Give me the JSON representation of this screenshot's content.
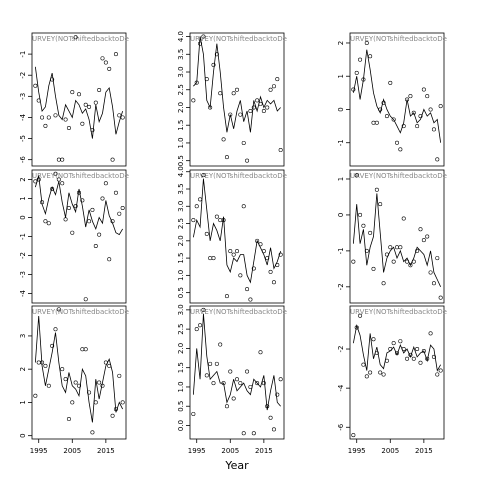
{
  "chart_data": [
    {
      "type": "scatter-line",
      "title": "URVEY(NOTshiftedbacktoDe",
      "x": [
        1994,
        1995,
        1996,
        1997,
        1998,
        1999,
        2000,
        2001,
        2002,
        2003,
        2004,
        2005,
        2006,
        2007,
        2008,
        2009,
        2010,
        2011,
        2012,
        2013,
        2014,
        2015,
        2016,
        2017,
        2018,
        2019,
        2020
      ],
      "xlim": [
        1993,
        2021
      ],
      "ylim": [
        -6.3,
        0
      ],
      "yticks": [
        -6,
        -5,
        -4,
        -3,
        -2,
        -1
      ],
      "values": [
        -2.5,
        -3.2,
        -4.0,
        -4.4,
        -4.0,
        -2.2,
        -3.9,
        -6.0,
        -6.0,
        -4.1,
        -4.5,
        -2.8,
        -0.2,
        -2.9,
        -4.3,
        -3.4,
        -3.5,
        -4.6,
        -3.3,
        -2.7,
        -1.2,
        -1.4,
        -1.7,
        -6.0,
        -1.0,
        -3.9,
        -4.0
      ],
      "fitted": [
        -1.6,
        -2.8,
        -3.7,
        -3.5,
        -2.5,
        -1.9,
        -3.0,
        -3.9,
        -4.1,
        -3.4,
        -3.7,
        -4.0,
        -3.2,
        -3.4,
        -3.8,
        -3.6,
        -4.1,
        -5.0,
        -3.4,
        -4.2,
        -3.8,
        -2.8,
        -2.6,
        -3.5,
        -4.8,
        -4.2,
        -3.7
      ]
    },
    {
      "type": "scatter-line",
      "title": "URVEY(NOTshiftedbacktoDe",
      "x": [
        1994,
        1995,
        1996,
        1997,
        1998,
        1999,
        2000,
        2001,
        2002,
        2003,
        2004,
        2005,
        2006,
        2007,
        2008,
        2009,
        2010,
        2011,
        2012,
        2013,
        2014,
        2015,
        2016,
        2017,
        2018,
        2019,
        2020
      ],
      "xlim": [
        1993,
        2021
      ],
      "ylim": [
        0.35,
        4.1
      ],
      "yticks": [
        0.5,
        {
          "value": 1,
          "label": "1.0"
        },
        1.5,
        {
          "value": 2,
          "label": "2.0"
        },
        2.5,
        {
          "value": 3,
          "label": "3.0"
        },
        3.5,
        {
          "value": 4,
          "label": "4.0"
        }
      ],
      "values": [
        2.2,
        2.7,
        3.8,
        4.0,
        2.8,
        2.0,
        3.2,
        3.5,
        2.4,
        1.1,
        0.6,
        1.8,
        2.4,
        2.5,
        1.8,
        1.0,
        0.5,
        1.9,
        2.0,
        2.2,
        2.1,
        1.9,
        2.0,
        2.5,
        2.6,
        2.8,
        0.8
      ],
      "fitted": [
        2.6,
        2.7,
        4.0,
        3.5,
        2.2,
        2.0,
        3.0,
        3.8,
        3.0,
        2.0,
        1.3,
        1.8,
        1.4,
        1.9,
        2.2,
        1.6,
        1.9,
        1.3,
        2.2,
        1.9,
        2.3,
        2.0,
        2.2,
        2.1,
        2.2,
        1.9,
        2.0
      ]
    },
    {
      "type": "scatter-line",
      "title": "URVEY(NOTshiftedbacktoDe",
      "x": [
        1994,
        1995,
        1996,
        1997,
        1998,
        1999,
        2000,
        2001,
        2002,
        2003,
        2004,
        2005,
        2006,
        2007,
        2008,
        2009,
        2010,
        2011,
        2012,
        2013,
        2014,
        2015,
        2016,
        2017,
        2018,
        2019,
        2020
      ],
      "xlim": [
        1993,
        2021
      ],
      "ylim": [
        -1.7,
        2.3
      ],
      "yticks": [
        -1,
        0,
        1,
        2
      ],
      "values": [
        0.6,
        1.1,
        1.5,
        0.9,
        2.0,
        1.6,
        -0.4,
        -0.4,
        0.0,
        0.2,
        -0.2,
        0.8,
        -0.3,
        -1.0,
        -1.2,
        -0.5,
        0.3,
        0.4,
        -0.1,
        -0.5,
        -0.2,
        0.6,
        0.4,
        0.0,
        -0.6,
        -1.5,
        0.1
      ],
      "fitted": [
        0.5,
        1.0,
        0.3,
        0.9,
        1.8,
        1.2,
        0.5,
        0.1,
        -0.1,
        0.3,
        0.0,
        -0.2,
        -0.3,
        -0.5,
        -0.7,
        -0.4,
        0.3,
        -0.2,
        -0.1,
        -0.4,
        -0.3,
        0.0,
        -0.2,
        -0.1,
        -0.4,
        -0.3,
        -1.0
      ]
    },
    {
      "type": "scatter-line",
      "title": "URVEY(NOTshiftedbacktoDe",
      "x": [
        1994,
        1995,
        1996,
        1997,
        1998,
        1999,
        2000,
        2001,
        2002,
        2003,
        2004,
        2005,
        2006,
        2007,
        2008,
        2009,
        2010,
        2011,
        2012,
        2013,
        2014,
        2015,
        2016,
        2017,
        2018,
        2019,
        2020
      ],
      "xlim": [
        1993,
        2021
      ],
      "ylim": [
        -4.5,
        2.5
      ],
      "yticks": [
        -4,
        -3,
        -2,
        -1,
        0,
        1,
        2
      ],
      "values": [
        1.9,
        2.0,
        0.8,
        -0.2,
        -0.3,
        1.5,
        2.3,
        2.0,
        1.8,
        -0.1,
        0.5,
        -0.8,
        0.6,
        1.3,
        0.9,
        -4.3,
        -0.2,
        0.4,
        -1.5,
        -0.9,
        1.0,
        1.8,
        -2.2,
        -0.2,
        1.3,
        0.2,
        0.5
      ],
      "fitted": [
        1.6,
        2.2,
        0.7,
        0.2,
        1.0,
        1.6,
        1.2,
        1.9,
        0.8,
        0.0,
        1.3,
        0.7,
        0.3,
        1.5,
        0.6,
        -0.5,
        0.4,
        -0.2,
        -0.6,
        0.0,
        -0.3,
        0.9,
        0.1,
        -0.3,
        -0.8,
        -0.9,
        -0.6
      ]
    },
    {
      "type": "scatter-line",
      "title": "URVEY(NOTshiftedbacktoDe",
      "x": [
        1994,
        1995,
        1996,
        1997,
        1998,
        1999,
        2000,
        2001,
        2002,
        2003,
        2004,
        2005,
        2006,
        2007,
        2008,
        2009,
        2010,
        2011,
        2012,
        2013,
        2014,
        2015,
        2016,
        2017,
        2018,
        2019,
        2020
      ],
      "xlim": [
        1993,
        2021
      ],
      "ylim": [
        0.2,
        4.05
      ],
      "yticks": [
        0.5,
        {
          "value": 1,
          "label": "1.0"
        },
        1.5,
        {
          "value": 2,
          "label": "2.0"
        },
        2.5,
        {
          "value": 3,
          "label": "3.0"
        },
        3.5,
        {
          "value": 4,
          "label": "4.0"
        }
      ],
      "values": [
        2.6,
        3.0,
        3.2,
        3.9,
        2.2,
        1.5,
        1.5,
        2.7,
        2.6,
        2.6,
        0.4,
        1.7,
        1.6,
        1.7,
        1.0,
        3.0,
        0.6,
        0.3,
        1.2,
        2.0,
        1.9,
        1.7,
        1.5,
        1.1,
        0.8,
        1.3,
        1.6
      ],
      "fitted": [
        2.1,
        2.6,
        2.4,
        3.8,
        2.9,
        2.0,
        2.5,
        2.3,
        2.0,
        2.7,
        1.3,
        1.1,
        1.5,
        1.4,
        1.6,
        1.6,
        1.0,
        0.8,
        1.4,
        2.0,
        1.8,
        1.6,
        1.3,
        1.8,
        1.2,
        1.4,
        1.7
      ]
    },
    {
      "type": "scatter-line",
      "title": "URVEY(NOTshiftedbacktoDe",
      "x": [
        1994,
        1995,
        1996,
        1997,
        1998,
        1999,
        2000,
        2001,
        2002,
        2003,
        2004,
        2005,
        2006,
        2007,
        2008,
        2009,
        2010,
        2011,
        2012,
        2013,
        2014,
        2015,
        2016,
        2017,
        2018,
        2019,
        2020
      ],
      "xlim": [
        1993,
        2021
      ],
      "ylim": [
        -2.45,
        1.25
      ],
      "yticks": [
        -2,
        -1,
        0,
        1
      ],
      "values": [
        -1.3,
        1.1,
        0.0,
        -0.3,
        -1.0,
        -0.5,
        -1.5,
        0.7,
        0.3,
        -1.9,
        -1.1,
        -0.9,
        -1.3,
        -0.9,
        -0.9,
        -0.1,
        -1.3,
        -1.4,
        -1.3,
        -1.0,
        -0.4,
        -0.7,
        -0.6,
        -1.6,
        -1.9,
        -1.2,
        -2.3
      ],
      "fitted": [
        -0.8,
        0.3,
        -0.8,
        -0.4,
        -1.4,
        -0.9,
        -0.6,
        0.6,
        -0.5,
        -1.6,
        -1.2,
        -1.0,
        -0.9,
        -1.2,
        -1.0,
        -1.3,
        -1.2,
        -1.4,
        -1.2,
        -0.9,
        -1.0,
        -1.1,
        -1.4,
        -1.0,
        -1.6,
        -1.8,
        -2.0
      ]
    },
    {
      "type": "scatter-line",
      "title": "URVEY(NOTshiftedbacktoDe",
      "x": [
        1994,
        1995,
        1996,
        1997,
        1998,
        1999,
        2000,
        2001,
        2002,
        2003,
        2004,
        2005,
        2006,
        2007,
        2008,
        2009,
        2010,
        2011,
        2012,
        2013,
        2014,
        2015,
        2016,
        2017,
        2018,
        2019,
        2020
      ],
      "xlim": [
        1993,
        2021
      ],
      "xticks": [
        1995,
        2005,
        2015
      ],
      "ylim": [
        -0.1,
        3.9
      ],
      "yticks": [
        0,
        1,
        2,
        3
      ],
      "values": [
        1.2,
        2.2,
        2.2,
        2.1,
        1.5,
        2.7,
        3.2,
        3.8,
        2.0,
        1.7,
        0.5,
        1.0,
        1.6,
        1.5,
        2.6,
        2.6,
        1.3,
        0.1,
        1.0,
        1.6,
        1.5,
        2.2,
        2.1,
        0.6,
        0.8,
        1.8,
        1.0
      ],
      "fitted": [
        2.2,
        3.6,
        2.1,
        1.5,
        2.0,
        2.5,
        3.1,
        2.2,
        1.5,
        1.3,
        1.9,
        1.5,
        1.4,
        1.2,
        2.0,
        1.8,
        1.0,
        0.4,
        1.7,
        1.1,
        1.6,
        2.1,
        2.3,
        1.9,
        0.7,
        1.0,
        0.8
      ]
    },
    {
      "type": "scatter-line",
      "title": "URVEY(NOTshiftedbacktoDe",
      "x": [
        1994,
        1995,
        1996,
        1997,
        1998,
        1999,
        2000,
        2001,
        2002,
        2003,
        2004,
        2005,
        2006,
        2007,
        2008,
        2009,
        2010,
        2011,
        2012,
        2013,
        2014,
        2015,
        2016,
        2017,
        2018,
        2019,
        2020
      ],
      "xlim": [
        1993,
        2021
      ],
      "xticks": [
        1995,
        2005,
        2015
      ],
      "xlabel": "Year",
      "ylim": [
        -0.35,
        3.1
      ],
      "yticks": [
        {
          "value": 0,
          "label": "0.0"
        },
        0.5,
        {
          "value": 1,
          "label": "1.0"
        },
        1.5,
        {
          "value": 2,
          "label": "2.0"
        },
        2.5,
        {
          "value": 3,
          "label": "3.0"
        }
      ],
      "values": [
        0.3,
        2.5,
        2.6,
        3.0,
        1.3,
        1.6,
        1.1,
        1.6,
        2.1,
        1.1,
        0.5,
        1.4,
        0.7,
        1.2,
        1.1,
        -0.2,
        1.4,
        1.0,
        -0.2,
        1.1,
        1.9,
        1.1,
        0.5,
        0.2,
        -0.1,
        0.8,
        1.2
      ],
      "fitted": [
        0.8,
        2.0,
        1.2,
        2.9,
        1.8,
        1.2,
        1.3,
        1.4,
        1.1,
        1.1,
        0.6,
        0.8,
        1.2,
        0.9,
        1.0,
        1.1,
        0.9,
        0.8,
        1.2,
        1.1,
        1.0,
        1.3,
        0.4,
        0.9,
        1.3,
        0.6,
        0.5
      ]
    },
    {
      "type": "scatter-line",
      "title": "URVEY(NOTshiftedbacktoDe",
      "x": [
        1994,
        1995,
        1996,
        1997,
        1998,
        1999,
        2000,
        2001,
        2002,
        2003,
        2004,
        2005,
        2006,
        2007,
        2008,
        2009,
        2010,
        2011,
        2012,
        2013,
        2014,
        2015,
        2016,
        2017,
        2018,
        2019,
        2020
      ],
      "xlim": [
        1993,
        2021
      ],
      "xticks": [
        1995,
        2005,
        2015
      ],
      "ylim": [
        -6.6,
        0.2
      ],
      "yticks": [
        -6,
        -4,
        -2
      ],
      "values": [
        -6.4,
        -0.9,
        -0.3,
        -2.8,
        -3.4,
        -3.2,
        -1.5,
        -2.2,
        -3.2,
        -3.3,
        -2.6,
        -2.0,
        -1.7,
        -2.2,
        -1.6,
        -2.0,
        -2.5,
        -2.3,
        -2.5,
        -2.0,
        -2.7,
        -2.1,
        -2.5,
        -1.2,
        -2.4,
        -3.3,
        -3.1
      ],
      "fitted": [
        -1.7,
        -0.8,
        -1.3,
        -2.3,
        -3.1,
        -1.2,
        -2.5,
        -1.9,
        -2.8,
        -3.0,
        -2.2,
        -2.1,
        -1.9,
        -2.3,
        -1.8,
        -2.2,
        -2.0,
        -2.4,
        -1.9,
        -2.4,
        -2.2,
        -2.1,
        -2.6,
        -1.8,
        -2.0,
        -3.1,
        -2.8
      ]
    }
  ]
}
